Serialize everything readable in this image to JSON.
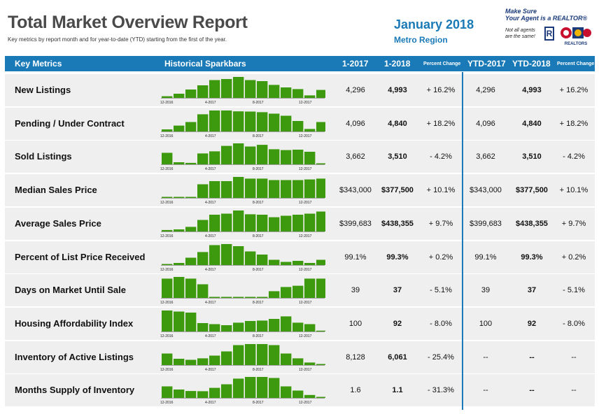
{
  "header": {
    "title": "Total Market Overview Report",
    "subtitle": "Key metrics by report month and for year-to-date (YTD) starting from the first of the year.",
    "month": "January 2018",
    "region": "Metro Region"
  },
  "ad": {
    "line1": "Make Sure",
    "line2": "Your Agent is a REALTOR®",
    "note1": "Not all agents",
    "note2": "are the same!",
    "r_mark": "R",
    "logo_text": "REALTORS"
  },
  "columns": {
    "key_metrics": "Key Metrics",
    "sparkbars": "Historical Sparkbars",
    "c2017": "1-2017",
    "c2018": "1-2018",
    "pct": "Percent Change",
    "ytd2017": "YTD-2017",
    "ytd2018": "YTD-2018",
    "ytd_pct": "Percent Change"
  },
  "spark_axis": [
    "12-2016",
    "4-2017",
    "8-2017",
    "12-2017"
  ],
  "colors": {
    "accent": "#1a7ab8",
    "bar": "#3d9a0e",
    "row_bg": "#efefef"
  },
  "rows": [
    {
      "label": "New Listings",
      "v2017": "4,296",
      "v2018": "4,993",
      "pct": "+ 16.2%",
      "ytd2017": "4,296",
      "ytd2018": "4,993",
      "ytd_pct": "+ 16.2%",
      "bars": [
        0.08,
        0.2,
        0.4,
        0.6,
        0.85,
        0.9,
        1.0,
        0.85,
        0.8,
        0.62,
        0.5,
        0.42,
        0.12,
        0.38
      ]
    },
    {
      "label": "Pending / Under Contract",
      "v2017": "4,096",
      "v2018": "4,840",
      "pct": "+ 18.2%",
      "ytd2017": "4,096",
      "ytd2018": "4,840",
      "ytd_pct": "+ 18.2%",
      "bars": [
        0.1,
        0.28,
        0.45,
        0.82,
        1.0,
        1.0,
        0.96,
        0.95,
        0.92,
        0.85,
        0.75,
        0.5,
        0.12,
        0.45
      ]
    },
    {
      "label": "Sold Listings",
      "v2017": "3,662",
      "v2018": "3,510",
      "pct": "- 4.2%",
      "ytd2017": "3,662",
      "ytd2018": "3,510",
      "ytd_pct": "- 4.2%",
      "bars": [
        0.55,
        0.1,
        0.07,
        0.52,
        0.62,
        0.88,
        1.0,
        0.85,
        0.93,
        0.72,
        0.68,
        0.7,
        0.6,
        0.05
      ]
    },
    {
      "label": "Median Sales Price",
      "v2017": "$343,000",
      "v2018": "$377,500",
      "pct": "+ 10.1%",
      "ytd2017": "$343,000",
      "ytd2018": "$377,500",
      "ytd_pct": "+ 10.1%",
      "bars": [
        0.05,
        0.05,
        0.05,
        0.65,
        0.8,
        0.8,
        1.0,
        0.92,
        0.92,
        0.85,
        0.85,
        0.85,
        0.88,
        0.92
      ]
    },
    {
      "label": "Average Sales Price",
      "v2017": "$399,683",
      "v2018": "$438,355",
      "pct": "+ 9.7%",
      "ytd2017": "$399,683",
      "ytd2018": "$438,355",
      "ytd_pct": "+ 9.7%",
      "bars": [
        0.07,
        0.1,
        0.22,
        0.55,
        0.8,
        0.85,
        1.0,
        0.82,
        0.8,
        0.68,
        0.75,
        0.8,
        0.85,
        0.95
      ]
    },
    {
      "label": "Percent of List Price Received",
      "v2017": "99.1%",
      "v2018": "99.3%",
      "pct": "+ 0.2%",
      "ytd2017": "99.1%",
      "ytd2018": "99.3%",
      "ytd_pct": "+ 0.2%",
      "bars": [
        0.05,
        0.1,
        0.35,
        0.62,
        0.95,
        1.0,
        0.9,
        0.65,
        0.5,
        0.25,
        0.15,
        0.2,
        0.1,
        0.25
      ]
    },
    {
      "label": "Days on Market Until Sale",
      "v2017": "39",
      "v2018": "37",
      "pct": "- 5.1%",
      "ytd2017": "39",
      "ytd2018": "37",
      "ytd_pct": "- 5.1%",
      "bars": [
        0.92,
        1.0,
        0.92,
        0.65,
        0.05,
        0.05,
        0.05,
        0.05,
        0.05,
        0.32,
        0.52,
        0.58,
        0.92,
        0.92
      ]
    },
    {
      "label": "Housing Affordability Index",
      "v2017": "100",
      "v2018": "92",
      "pct": "- 8.0%",
      "ytd2017": "100",
      "ytd2018": "92",
      "ytd_pct": "- 8.0%",
      "bars": [
        1.0,
        0.95,
        0.9,
        0.4,
        0.35,
        0.3,
        0.42,
        0.5,
        0.52,
        0.6,
        0.72,
        0.42,
        0.35,
        0.04
      ]
    },
    {
      "label": "Inventory of Active Listings",
      "v2017": "8,128",
      "v2018": "6,061",
      "pct": "- 25.4%",
      "ytd2017": "--",
      "ytd2018": "--",
      "ytd_pct": "--",
      "bars": [
        0.55,
        0.3,
        0.25,
        0.32,
        0.45,
        0.65,
        0.95,
        1.0,
        1.0,
        0.95,
        0.55,
        0.32,
        0.12,
        0.05
      ]
    },
    {
      "label": "Months Supply of Inventory",
      "v2017": "1.6",
      "v2018": "1.1",
      "pct": "- 31.3%",
      "ytd2017": "--",
      "ytd2018": "--",
      "ytd_pct": "--",
      "bars": [
        0.55,
        0.4,
        0.33,
        0.32,
        0.48,
        0.65,
        0.92,
        1.0,
        1.0,
        0.95,
        0.55,
        0.35,
        0.14,
        0.05
      ]
    }
  ]
}
